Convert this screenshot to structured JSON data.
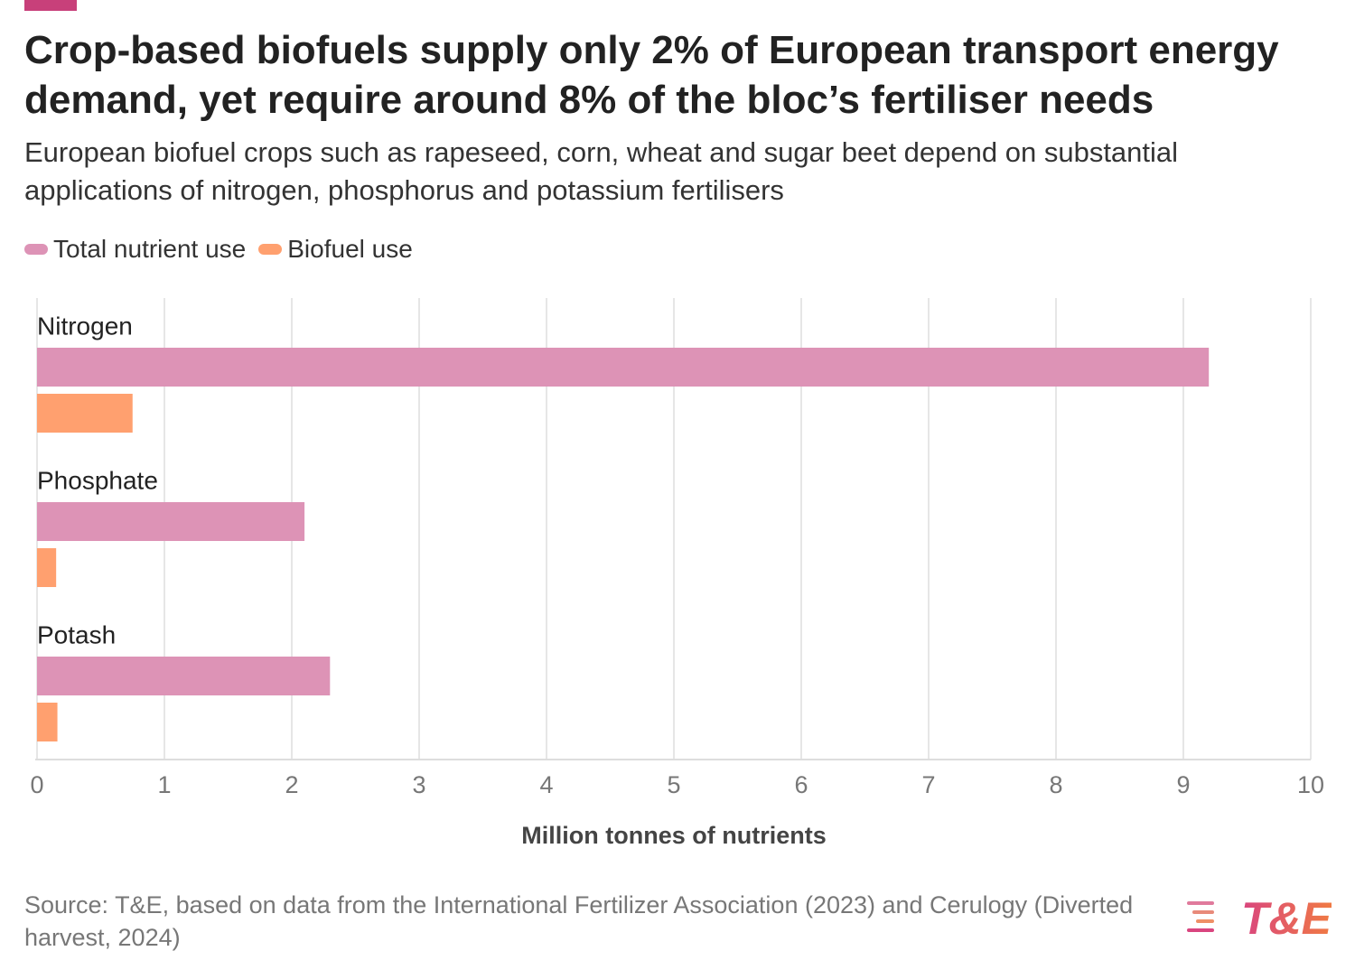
{
  "chart_data": {
    "type": "bar",
    "orientation": "horizontal",
    "title": "Crop-based biofuels supply only 2% of European transport energy demand, yet require around 8% of the bloc’s fertiliser needs",
    "subtitle": "European biofuel crops such as rapeseed, corn, wheat and sugar beet depend on substantial applications of nitrogen, phosphorus and potassium fertilisers",
    "categories": [
      "Nitrogen",
      "Phosphate",
      "Potash"
    ],
    "series": [
      {
        "name": "Total nutrient use",
        "color": "#dd93b6",
        "values": [
          9.2,
          2.1,
          2.3
        ]
      },
      {
        "name": "Biofuel use",
        "color": "#ffa06f",
        "values": [
          0.75,
          0.15,
          0.16
        ]
      }
    ],
    "xlabel": "Million tonnes of nutrients",
    "xlim": [
      0,
      10
    ],
    "xticks": [
      0,
      1,
      2,
      3,
      4,
      5,
      6,
      7,
      8,
      9,
      10
    ],
    "grid": true,
    "legend": "top-left",
    "source": "Source: T&E, based on data from the International Fertilizer Association (2023) and Cerulogy (Diverted harvest, 2024)",
    "logo": "T&E"
  }
}
